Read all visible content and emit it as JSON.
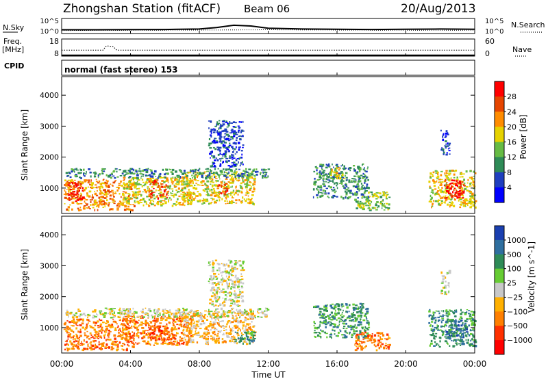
{
  "header": {
    "station": "Zhongshan Station (fitACF)",
    "beam": "Beam 06",
    "date": "20/Aug/2013",
    "cpid_label": "CPID",
    "mode": "normal (fast stereo) 153"
  },
  "colors": {
    "power": [
      "#0000ff",
      "#1f3fbf",
      "#2e8b57",
      "#66bb44",
      "#e6d200",
      "#ff8c00",
      "#e64500",
      "#ff0000"
    ],
    "velocity": [
      "#1a3fb0",
      "#2f6f9f",
      "#2e8b57",
      "#66cc33",
      "#c8c8c8",
      "#ffb000",
      "#ff7f00",
      "#ff3000",
      "#ff0000"
    ]
  },
  "chart_data": [
    {
      "type": "line",
      "panel": "noise",
      "ylabel_left": "N.Sky",
      "ylabel_right": "N.Search",
      "left_ticks": [
        "10^5",
        "10^0"
      ],
      "right_ticks": [
        "10^5",
        "10^0"
      ],
      "legend_right": "N.Search",
      "series": [
        {
          "name": "N.Sky",
          "style": "solid",
          "x_hours": [
            0,
            2,
            4,
            6,
            8,
            9,
            10,
            11,
            12,
            14,
            16,
            18,
            20,
            22,
            24
          ],
          "y_frac": [
            0.25,
            0.25,
            0.26,
            0.27,
            0.3,
            0.4,
            0.55,
            0.5,
            0.35,
            0.3,
            0.28,
            0.27,
            0.28,
            0.3,
            0.28
          ]
        },
        {
          "name": "N.Search",
          "style": "dotted",
          "x_hours": [
            0,
            6,
            12,
            18,
            24
          ],
          "y_frac": [
            0.2,
            0.22,
            0.25,
            0.22,
            0.22
          ]
        }
      ]
    },
    {
      "type": "line",
      "panel": "frequency",
      "ylabel_left": "Freq.",
      "ylabel_left_unit": "[MHz]",
      "ylabel_right": "Nave",
      "left_ticks": [
        "18",
        "8"
      ],
      "right_ticks": [
        "60",
        "0"
      ],
      "legend_right": "Nave",
      "series": [
        {
          "name": "Freq.",
          "style": "dotted",
          "x_hours": [
            0,
            2.4,
            2.6,
            3.0,
            3.2,
            24
          ],
          "y_frac": [
            0.35,
            0.35,
            0.6,
            0.55,
            0.35,
            0.35
          ]
        },
        {
          "name": "Nave",
          "style": "solid",
          "x_hours": [
            0,
            24
          ],
          "y_frac": [
            0.05,
            0.05
          ]
        }
      ]
    },
    {
      "type": "heatmap",
      "panel": "power",
      "ylabel": "Slant Range [km]",
      "y_ticks": [
        1000,
        2000,
        3000,
        4000
      ],
      "ylim": [
        180,
        4600
      ],
      "xlim_hours": [
        0,
        24
      ],
      "colorbar_label": "Power [dB]",
      "colorbar_ticks": [
        4,
        8,
        12,
        16,
        20,
        24,
        28
      ],
      "regions": [
        {
          "t0": 0.1,
          "t1": 4.2,
          "r0": 300,
          "r1": 1300,
          "level": 5
        },
        {
          "t0": 0.3,
          "t1": 1.2,
          "r0": 600,
          "r1": 1200,
          "level": 7
        },
        {
          "t0": 3.5,
          "t1": 7.5,
          "r0": 450,
          "r1": 1400,
          "level": 4
        },
        {
          "t0": 5.0,
          "t1": 6.2,
          "r0": 700,
          "r1": 1300,
          "level": 6
        },
        {
          "t0": 7.0,
          "t1": 11.2,
          "r0": 500,
          "r1": 1550,
          "level": 4
        },
        {
          "t0": 8.5,
          "t1": 10.5,
          "r0": 1700,
          "r1": 3200,
          "level": 1
        },
        {
          "t0": 9.0,
          "t1": 9.6,
          "r0": 800,
          "r1": 1200,
          "level": 6
        },
        {
          "t0": 0.2,
          "t1": 12.0,
          "r0": 1350,
          "r1": 1650,
          "level": 2
        },
        {
          "t0": 14.6,
          "t1": 17.8,
          "r0": 700,
          "r1": 1800,
          "level": 2
        },
        {
          "t0": 15.5,
          "t1": 16.4,
          "r0": 1300,
          "r1": 1700,
          "level": 4
        },
        {
          "t0": 17.0,
          "t1": 19.0,
          "r0": 300,
          "r1": 900,
          "level": 3
        },
        {
          "t0": 21.3,
          "t1": 24.0,
          "r0": 400,
          "r1": 1600,
          "level": 4
        },
        {
          "t0": 22.2,
          "t1": 23.5,
          "r0": 700,
          "r1": 1300,
          "level": 7
        },
        {
          "t0": 22.0,
          "t1": 22.5,
          "r0": 2100,
          "r1": 2900,
          "level": 1
        }
      ]
    },
    {
      "type": "heatmap",
      "panel": "velocity",
      "ylabel": "Slant Range [km]",
      "y_ticks": [
        1000,
        2000,
        3000,
        4000
      ],
      "ylim": [
        180,
        4600
      ],
      "xlim_hours": [
        0,
        24
      ],
      "xlabel": "Time UT",
      "x_ticks": [
        "00:00",
        "04:00",
        "08:00",
        "12:00",
        "16:00",
        "20:00",
        "00:00"
      ],
      "colorbar_label": "Velocity [m s^-1]",
      "colorbar_ticks": [
        "1000",
        "500",
        "100",
        "25",
        "−25",
        "−100",
        "−500",
        "−1000"
      ],
      "regions": [
        {
          "t0": 0.1,
          "t1": 4.2,
          "r0": 300,
          "r1": 1300,
          "level": 6
        },
        {
          "t0": 3.5,
          "t1": 7.5,
          "r0": 450,
          "r1": 1400,
          "level": 6
        },
        {
          "t0": 5.0,
          "t1": 6.2,
          "r0": 600,
          "r1": 1100,
          "level": 7
        },
        {
          "t0": 7.0,
          "t1": 11.2,
          "r0": 500,
          "r1": 1550,
          "level": 5
        },
        {
          "t0": 8.5,
          "t1": 10.5,
          "r0": 1700,
          "r1": 3200,
          "level": 4
        },
        {
          "t0": 0.2,
          "t1": 12.0,
          "r0": 1350,
          "r1": 1650,
          "level": 4
        },
        {
          "t0": 10.0,
          "t1": 11.2,
          "r0": 500,
          "r1": 900,
          "level": 2
        },
        {
          "t0": 14.6,
          "t1": 17.8,
          "r0": 700,
          "r1": 1800,
          "level": 2
        },
        {
          "t0": 17.0,
          "t1": 19.0,
          "r0": 300,
          "r1": 900,
          "level": 6
        },
        {
          "t0": 21.3,
          "t1": 24.0,
          "r0": 400,
          "r1": 1600,
          "level": 2
        },
        {
          "t0": 22.2,
          "t1": 23.5,
          "r0": 700,
          "r1": 1300,
          "level": 1
        },
        {
          "t0": 22.0,
          "t1": 22.5,
          "r0": 2100,
          "r1": 2900,
          "level": 4
        }
      ]
    }
  ]
}
